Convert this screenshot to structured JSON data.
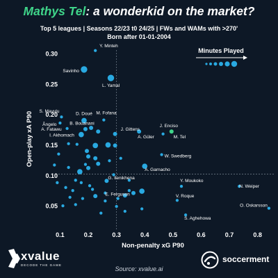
{
  "header": {
    "title_player": "Mathys Tel",
    "title_rest": ": a wonderkid on the market?",
    "subtitle_line1": "Top 5 leagues | Seasons 22/23 t0 24/25 | FWs and WAMs with >270'",
    "subtitle_line2": "Born after 01-01-2004"
  },
  "legend": {
    "title": "Minutes Played"
  },
  "source": "Source: xvalue.ai",
  "branding": {
    "xvalue_name": "xvalue",
    "xvalue_tagline": "DECODE THE GAME",
    "soccerment_name": "soccerment"
  },
  "colors": {
    "background": "#0d1826",
    "point": "#29a9e1",
    "highlight": "#3fd58a",
    "title_accent": "#3fd58a"
  },
  "chart_data": {
    "type": "scatter",
    "title": "Mathys Tel: a wonderkid on the market?",
    "xlabel": "Non-penalty xG P90",
    "ylabel": "Open-play xA P90",
    "xlim": [
      0.03,
      0.86
    ],
    "ylim": [
      0.025,
      0.315
    ],
    "xticks": [
      0.1,
      0.2,
      0.3,
      0.4,
      0.5,
      0.6,
      0.7,
      0.8
    ],
    "yticks": [
      0.05,
      0.1,
      0.15,
      0.2,
      0.25,
      0.3
    ],
    "reference_lines": {
      "x": 0.3,
      "y": 0.102
    },
    "legend_position": "top-right",
    "points": [
      {
        "name": "Y. Minteh",
        "x": 0.225,
        "y": 0.305,
        "size": 1
      },
      {
        "name": "Savinho",
        "x": 0.185,
        "y": 0.274,
        "size": 4
      },
      {
        "name": "L. Yamal",
        "x": 0.28,
        "y": 0.26,
        "size": 4
      },
      {
        "name": "S. Mayulu",
        "x": 0.105,
        "y": 0.196,
        "size": 1
      },
      {
        "name": "D. Doué",
        "x": 0.185,
        "y": 0.19,
        "size": 3
      },
      {
        "name": "M. Fofana",
        "x": 0.255,
        "y": 0.191,
        "size": 1
      },
      {
        "name": "Ângelo",
        "x": 0.1,
        "y": 0.186,
        "size": 1
      },
      {
        "name": "B. Bouanani",
        "x": 0.19,
        "y": 0.176,
        "size": 2
      },
      {
        "name": "J. Gittens",
        "x": 0.295,
        "y": 0.168,
        "size": 2
      },
      {
        "name": "J. Enciso",
        "x": 0.465,
        "y": 0.168,
        "size": 1
      },
      {
        "name": "A. Fatawu",
        "x": 0.125,
        "y": 0.177,
        "size": 1
      },
      {
        "name": "I. Akhomach",
        "x": 0.175,
        "y": 0.167,
        "size": 3
      },
      {
        "name": "A. Güler",
        "x": 0.38,
        "y": 0.172,
        "size": 2
      },
      {
        "name": "M. Tel",
        "x": 0.495,
        "y": 0.172,
        "size": 2,
        "highlight": true
      },
      {
        "name": "W. Swedberg",
        "x": 0.46,
        "y": 0.134,
        "size": 1
      },
      {
        "name": "A. Garnacho",
        "x": 0.4,
        "y": 0.115,
        "size": 3
      },
      {
        "name": "G. Ilenikhena",
        "x": 0.265,
        "y": 0.091,
        "size": 2
      },
      {
        "name": "E. Ferguson",
        "x": 0.26,
        "y": 0.071,
        "size": 1
      },
      {
        "name": "Y. Moukoko",
        "x": 0.53,
        "y": 0.082,
        "size": 1
      },
      {
        "name": "N. Weiper",
        "x": 0.735,
        "y": 0.082,
        "size": 1
      },
      {
        "name": "V. Roque",
        "x": 0.515,
        "y": 0.059,
        "size": 1
      },
      {
        "name": "O. Oskarsson",
        "x": 0.84,
        "y": 0.046,
        "size": 1
      },
      {
        "name": "S. Aghehowa",
        "x": 0.545,
        "y": 0.035,
        "size": 1
      },
      {
        "name": "",
        "x": 0.21,
        "y": 0.178,
        "size": 2
      },
      {
        "name": "",
        "x": 0.235,
        "y": 0.172,
        "size": 2
      },
      {
        "name": "",
        "x": 0.13,
        "y": 0.152,
        "size": 1
      },
      {
        "name": "",
        "x": 0.16,
        "y": 0.151,
        "size": 1
      },
      {
        "name": "",
        "x": 0.195,
        "y": 0.14,
        "size": 2
      },
      {
        "name": "",
        "x": 0.225,
        "y": 0.149,
        "size": 3
      },
      {
        "name": "",
        "x": 0.27,
        "y": 0.15,
        "size": 3
      },
      {
        "name": "",
        "x": 0.295,
        "y": 0.149,
        "size": 2
      },
      {
        "name": "",
        "x": 0.2,
        "y": 0.131,
        "size": 2
      },
      {
        "name": "",
        "x": 0.225,
        "y": 0.128,
        "size": 2
      },
      {
        "name": "",
        "x": 0.19,
        "y": 0.118,
        "size": 1
      },
      {
        "name": "",
        "x": 0.2,
        "y": 0.112,
        "size": 2
      },
      {
        "name": "",
        "x": 0.17,
        "y": 0.106,
        "size": 3
      },
      {
        "name": "",
        "x": 0.095,
        "y": 0.135,
        "size": 1
      },
      {
        "name": "",
        "x": 0.08,
        "y": 0.117,
        "size": 1
      },
      {
        "name": "",
        "x": 0.13,
        "y": 0.113,
        "size": 1
      },
      {
        "name": "",
        "x": 0.235,
        "y": 0.119,
        "size": 2
      },
      {
        "name": "",
        "x": 0.275,
        "y": 0.124,
        "size": 1
      },
      {
        "name": "",
        "x": 0.315,
        "y": 0.128,
        "size": 1
      },
      {
        "name": "",
        "x": 0.29,
        "y": 0.101,
        "size": 1
      },
      {
        "name": "",
        "x": 0.09,
        "y": 0.088,
        "size": 1
      },
      {
        "name": "",
        "x": 0.12,
        "y": 0.08,
        "size": 1
      },
      {
        "name": "",
        "x": 0.145,
        "y": 0.075,
        "size": 1
      },
      {
        "name": "",
        "x": 0.155,
        "y": 0.092,
        "size": 1
      },
      {
        "name": "",
        "x": 0.175,
        "y": 0.088,
        "size": 1
      },
      {
        "name": "",
        "x": 0.205,
        "y": 0.083,
        "size": 1
      },
      {
        "name": "",
        "x": 0.215,
        "y": 0.077,
        "size": 1
      },
      {
        "name": "",
        "x": 0.135,
        "y": 0.064,
        "size": 1
      },
      {
        "name": "",
        "x": 0.18,
        "y": 0.062,
        "size": 1
      },
      {
        "name": "",
        "x": 0.225,
        "y": 0.066,
        "size": 2
      },
      {
        "name": "",
        "x": 0.26,
        "y": 0.058,
        "size": 1
      },
      {
        "name": "",
        "x": 0.305,
        "y": 0.062,
        "size": 1
      },
      {
        "name": "",
        "x": 0.33,
        "y": 0.067,
        "size": 2
      },
      {
        "name": "",
        "x": 0.345,
        "y": 0.075,
        "size": 1
      },
      {
        "name": "",
        "x": 0.36,
        "y": 0.071,
        "size": 2
      },
      {
        "name": "",
        "x": 0.39,
        "y": 0.074,
        "size": 3
      },
      {
        "name": "",
        "x": 0.11,
        "y": 0.05,
        "size": 1
      },
      {
        "name": "",
        "x": 0.155,
        "y": 0.052,
        "size": 1
      },
      {
        "name": "",
        "x": 0.3,
        "y": 0.049,
        "size": 1
      },
      {
        "name": "",
        "x": 0.33,
        "y": 0.041,
        "size": 1
      },
      {
        "name": "",
        "x": 0.245,
        "y": 0.038,
        "size": 1
      },
      {
        "name": "",
        "x": 0.39,
        "y": 0.045,
        "size": 1
      },
      {
        "name": "",
        "x": 0.345,
        "y": 0.092,
        "size": 1
      }
    ]
  }
}
